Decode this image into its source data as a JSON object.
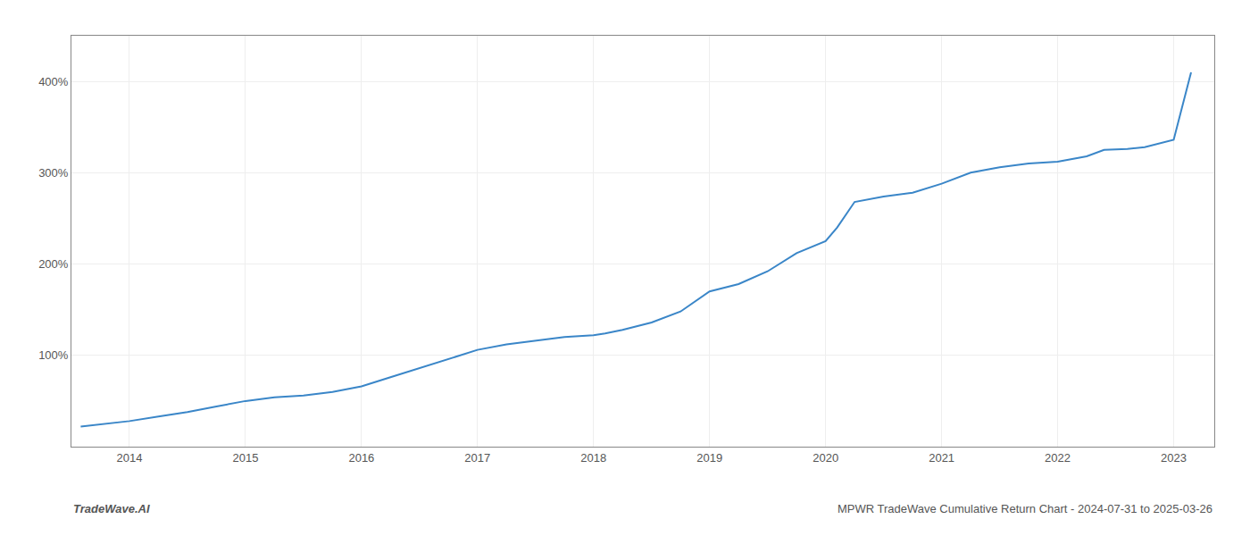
{
  "chart_data": {
    "type": "line",
    "title": "MPWR TradeWave Cumulative Return Chart - 2024-07-31 to 2025-03-26",
    "annotations": [
      "TradeWave.AI"
    ],
    "color": "#3a86c8",
    "grid": true,
    "x": [
      2013.58,
      2014.0,
      2014.25,
      2014.5,
      2014.75,
      2015.0,
      2015.25,
      2015.5,
      2015.75,
      2016.0,
      2016.25,
      2016.5,
      2016.75,
      2017.0,
      2017.25,
      2017.5,
      2017.75,
      2018.0,
      2018.1,
      2018.25,
      2018.5,
      2018.75,
      2019.0,
      2019.25,
      2019.5,
      2019.75,
      2020.0,
      2020.1,
      2020.25,
      2020.5,
      2020.75,
      2021.0,
      2021.25,
      2021.5,
      2021.75,
      2022.0,
      2022.25,
      2022.4,
      2022.6,
      2022.75,
      2023.0,
      2023.15
    ],
    "values": [
      22,
      28,
      33,
      38,
      44,
      50,
      54,
      56,
      60,
      66,
      76,
      86,
      96,
      106,
      112,
      116,
      120,
      122,
      124,
      128,
      136,
      148,
      170,
      178,
      192,
      212,
      225,
      240,
      268,
      274,
      278,
      288,
      300,
      306,
      310,
      312,
      318,
      325,
      326,
      328,
      336,
      410
    ],
    "xlim": [
      2013.5,
      2023.35
    ],
    "xticks": [
      2014,
      2015,
      2016,
      2017,
      2018,
      2019,
      2020,
      2021,
      2022,
      2023
    ],
    "ylim": [
      0,
      450
    ],
    "yticks": [
      {
        "value": 100,
        "label": "100%"
      },
      {
        "value": 200,
        "label": "200%"
      },
      {
        "value": 300,
        "label": "300%"
      },
      {
        "value": 400,
        "label": "400%"
      }
    ]
  }
}
